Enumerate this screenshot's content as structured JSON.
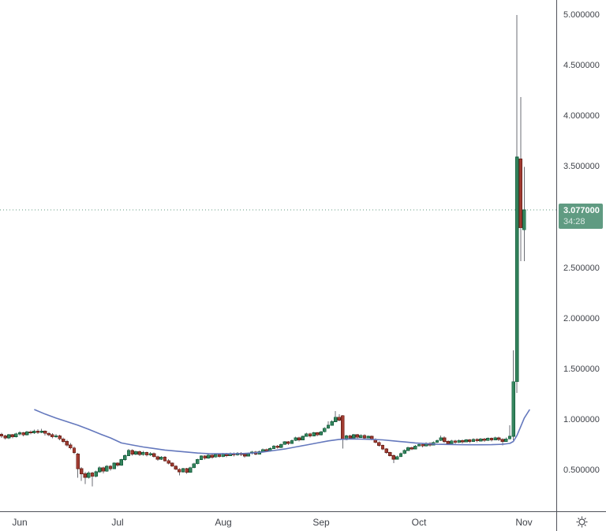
{
  "chart_data": {
    "type": "candlestick",
    "x_start": 2,
    "x_step": 4.6,
    "ylim": [
      0.1,
      5.15
    ],
    "grid": false,
    "legend": "none",
    "colors": {
      "background": "#ffffff",
      "up": "#35855e",
      "up_border": "#17603f",
      "down": "#a03b31",
      "down_border": "#6f241c",
      "wick": "#6b6e74",
      "axis_line": "#50525a",
      "axis_text": "#40434a"
    },
    "candles": [
      [
        0.86,
        0.875,
        0.825,
        0.845
      ],
      [
        0.845,
        0.855,
        0.81,
        0.825
      ],
      [
        0.825,
        0.865,
        0.815,
        0.855
      ],
      [
        0.855,
        0.865,
        0.82,
        0.835
      ],
      [
        0.835,
        0.875,
        0.83,
        0.865
      ],
      [
        0.865,
        0.89,
        0.85,
        0.875
      ],
      [
        0.875,
        0.885,
        0.84,
        0.855
      ],
      [
        0.855,
        0.895,
        0.85,
        0.885
      ],
      [
        0.885,
        0.9,
        0.86,
        0.875
      ],
      [
        0.875,
        0.905,
        0.865,
        0.89
      ],
      [
        0.89,
        0.91,
        0.865,
        0.88
      ],
      [
        0.88,
        0.915,
        0.87,
        0.89
      ],
      [
        0.89,
        0.9,
        0.85,
        0.87
      ],
      [
        0.87,
        0.885,
        0.84,
        0.855
      ],
      [
        0.855,
        0.87,
        0.82,
        0.835
      ],
      [
        0.835,
        0.865,
        0.825,
        0.845
      ],
      [
        0.845,
        0.855,
        0.8,
        0.815
      ],
      [
        0.815,
        0.83,
        0.775,
        0.79
      ],
      [
        0.79,
        0.805,
        0.74,
        0.755
      ],
      [
        0.755,
        0.775,
        0.71,
        0.725
      ],
      [
        0.725,
        0.74,
        0.665,
        0.68
      ],
      [
        0.665,
        0.675,
        0.43,
        0.52
      ],
      [
        0.52,
        0.535,
        0.4,
        0.47
      ],
      [
        0.47,
        0.49,
        0.37,
        0.435
      ],
      [
        0.435,
        0.495,
        0.425,
        0.48
      ],
      [
        0.48,
        0.49,
        0.345,
        0.445
      ],
      [
        0.445,
        0.5,
        0.435,
        0.49
      ],
      [
        0.49,
        0.545,
        0.48,
        0.53
      ],
      [
        0.53,
        0.54,
        0.475,
        0.495
      ],
      [
        0.495,
        0.555,
        0.49,
        0.545
      ],
      [
        0.545,
        0.555,
        0.5,
        0.52
      ],
      [
        0.52,
        0.585,
        0.515,
        0.575
      ],
      [
        0.575,
        0.585,
        0.54,
        0.555
      ],
      [
        0.555,
        0.62,
        0.55,
        0.61
      ],
      [
        0.61,
        0.66,
        0.6,
        0.65
      ],
      [
        0.65,
        0.715,
        0.645,
        0.7
      ],
      [
        0.7,
        0.71,
        0.65,
        0.665
      ],
      [
        0.665,
        0.7,
        0.655,
        0.69
      ],
      [
        0.69,
        0.7,
        0.645,
        0.66
      ],
      [
        0.66,
        0.695,
        0.65,
        0.68
      ],
      [
        0.68,
        0.69,
        0.64,
        0.655
      ],
      [
        0.655,
        0.685,
        0.645,
        0.67
      ],
      [
        0.67,
        0.68,
        0.63,
        0.64
      ],
      [
        0.64,
        0.65,
        0.6,
        0.615
      ],
      [
        0.615,
        0.645,
        0.605,
        0.635
      ],
      [
        0.635,
        0.645,
        0.59,
        0.6
      ],
      [
        0.6,
        0.615,
        0.565,
        0.575
      ],
      [
        0.575,
        0.585,
        0.535,
        0.545
      ],
      [
        0.545,
        0.555,
        0.505,
        0.515
      ],
      [
        0.515,
        0.525,
        0.455,
        0.49
      ],
      [
        0.49,
        0.53,
        0.48,
        0.52
      ],
      [
        0.52,
        0.53,
        0.47,
        0.485
      ],
      [
        0.485,
        0.54,
        0.48,
        0.53
      ],
      [
        0.53,
        0.58,
        0.525,
        0.57
      ],
      [
        0.57,
        0.62,
        0.565,
        0.61
      ],
      [
        0.61,
        0.655,
        0.605,
        0.645
      ],
      [
        0.645,
        0.655,
        0.61,
        0.625
      ],
      [
        0.625,
        0.665,
        0.62,
        0.655
      ],
      [
        0.655,
        0.665,
        0.62,
        0.635
      ],
      [
        0.635,
        0.67,
        0.63,
        0.66
      ],
      [
        0.66,
        0.67,
        0.63,
        0.64
      ],
      [
        0.64,
        0.675,
        0.635,
        0.665
      ],
      [
        0.665,
        0.675,
        0.635,
        0.65
      ],
      [
        0.65,
        0.68,
        0.645,
        0.67
      ],
      [
        0.67,
        0.68,
        0.64,
        0.655
      ],
      [
        0.655,
        0.685,
        0.65,
        0.675
      ],
      [
        0.675,
        0.685,
        0.645,
        0.66
      ],
      [
        0.66,
        0.67,
        0.63,
        0.645
      ],
      [
        0.645,
        0.68,
        0.64,
        0.67
      ],
      [
        0.67,
        0.695,
        0.66,
        0.685
      ],
      [
        0.685,
        0.695,
        0.655,
        0.665
      ],
      [
        0.665,
        0.7,
        0.66,
        0.69
      ],
      [
        0.69,
        0.72,
        0.685,
        0.71
      ],
      [
        0.71,
        0.72,
        0.685,
        0.695
      ],
      [
        0.695,
        0.73,
        0.69,
        0.72
      ],
      [
        0.72,
        0.755,
        0.715,
        0.745
      ],
      [
        0.745,
        0.755,
        0.72,
        0.73
      ],
      [
        0.73,
        0.77,
        0.725,
        0.76
      ],
      [
        0.76,
        0.795,
        0.755,
        0.785
      ],
      [
        0.785,
        0.795,
        0.755,
        0.77
      ],
      [
        0.77,
        0.81,
        0.765,
        0.8
      ],
      [
        0.8,
        0.835,
        0.795,
        0.825
      ],
      [
        0.825,
        0.835,
        0.79,
        0.805
      ],
      [
        0.805,
        0.85,
        0.8,
        0.84
      ],
      [
        0.84,
        0.875,
        0.835,
        0.865
      ],
      [
        0.865,
        0.875,
        0.83,
        0.845
      ],
      [
        0.845,
        0.885,
        0.84,
        0.875
      ],
      [
        0.875,
        0.885,
        0.84,
        0.855
      ],
      [
        0.855,
        0.895,
        0.85,
        0.885
      ],
      [
        0.885,
        0.93,
        0.88,
        0.92
      ],
      [
        0.92,
        0.99,
        0.915,
        0.95
      ],
      [
        0.95,
        1.0,
        0.945,
        0.985
      ],
      [
        0.985,
        1.09,
        0.98,
        1.03
      ],
      [
        1.03,
        1.06,
        0.99,
        1.0
      ],
      [
        1.045,
        1.05,
        0.72,
        0.81
      ],
      [
        0.81,
        0.855,
        0.8,
        0.845
      ],
      [
        0.845,
        0.855,
        0.81,
        0.825
      ],
      [
        0.825,
        0.865,
        0.82,
        0.855
      ],
      [
        0.855,
        0.865,
        0.82,
        0.83
      ],
      [
        0.83,
        0.86,
        0.825,
        0.85
      ],
      [
        0.85,
        0.86,
        0.815,
        0.825
      ],
      [
        0.825,
        0.85,
        0.82,
        0.84
      ],
      [
        0.84,
        0.85,
        0.8,
        0.81
      ],
      [
        0.81,
        0.82,
        0.77,
        0.78
      ],
      [
        0.78,
        0.79,
        0.74,
        0.75
      ],
      [
        0.75,
        0.76,
        0.705,
        0.715
      ],
      [
        0.715,
        0.725,
        0.67,
        0.68
      ],
      [
        0.68,
        0.69,
        0.64,
        0.65
      ],
      [
        0.65,
        0.66,
        0.575,
        0.615
      ],
      [
        0.615,
        0.65,
        0.61,
        0.64
      ],
      [
        0.64,
        0.68,
        0.635,
        0.67
      ],
      [
        0.67,
        0.71,
        0.665,
        0.7
      ],
      [
        0.7,
        0.74,
        0.695,
        0.73
      ],
      [
        0.73,
        0.74,
        0.705,
        0.715
      ],
      [
        0.715,
        0.755,
        0.71,
        0.745
      ],
      [
        0.745,
        0.775,
        0.74,
        0.76
      ],
      [
        0.76,
        0.77,
        0.73,
        0.745
      ],
      [
        0.745,
        0.78,
        0.74,
        0.77
      ],
      [
        0.77,
        0.78,
        0.74,
        0.755
      ],
      [
        0.755,
        0.79,
        0.75,
        0.78
      ],
      [
        0.78,
        0.81,
        0.775,
        0.8
      ],
      [
        0.8,
        0.85,
        0.795,
        0.825
      ],
      [
        0.825,
        0.84,
        0.775,
        0.79
      ],
      [
        0.79,
        0.8,
        0.755,
        0.77
      ],
      [
        0.77,
        0.805,
        0.765,
        0.795
      ],
      [
        0.795,
        0.805,
        0.765,
        0.78
      ],
      [
        0.78,
        0.81,
        0.775,
        0.8
      ],
      [
        0.8,
        0.81,
        0.77,
        0.785
      ],
      [
        0.785,
        0.815,
        0.78,
        0.805
      ],
      [
        0.805,
        0.815,
        0.775,
        0.79
      ],
      [
        0.79,
        0.82,
        0.785,
        0.81
      ],
      [
        0.81,
        0.82,
        0.78,
        0.795
      ],
      [
        0.795,
        0.825,
        0.79,
        0.815
      ],
      [
        0.815,
        0.825,
        0.785,
        0.8
      ],
      [
        0.8,
        0.83,
        0.795,
        0.82
      ],
      [
        0.82,
        0.83,
        0.79,
        0.805
      ],
      [
        0.805,
        0.835,
        0.8,
        0.825
      ],
      [
        0.825,
        0.835,
        0.795,
        0.81
      ],
      [
        0.81,
        0.82,
        0.75,
        0.79
      ],
      [
        0.79,
        0.83,
        0.785,
        0.815
      ],
      [
        0.815,
        0.95,
        0.81,
        0.84
      ],
      [
        0.84,
        1.69,
        0.8,
        1.38
      ],
      [
        1.38,
        5.0,
        1.27,
        3.6
      ],
      [
        3.58,
        4.19,
        2.57,
        2.9
      ],
      [
        2.88,
        3.5,
        2.57,
        3.077
      ]
    ],
    "ma_line": {
      "name": "moving-average",
      "color": "#6478bd",
      "points": [
        [
          9,
          1.105
        ],
        [
          12,
          1.06
        ],
        [
          15,
          1.02
        ],
        [
          18,
          0.985
        ],
        [
          21,
          0.95
        ],
        [
          24,
          0.91
        ],
        [
          27,
          0.865
        ],
        [
          30,
          0.825
        ],
        [
          33,
          0.775
        ],
        [
          36,
          0.755
        ],
        [
          39,
          0.735
        ],
        [
          42,
          0.72
        ],
        [
          45,
          0.705
        ],
        [
          48,
          0.695
        ],
        [
          51,
          0.685
        ],
        [
          54,
          0.675
        ],
        [
          57,
          0.67
        ],
        [
          60,
          0.668
        ],
        [
          63,
          0.668
        ],
        [
          66,
          0.67
        ],
        [
          69,
          0.675
        ],
        [
          72,
          0.685
        ],
        [
          75,
          0.7
        ],
        [
          78,
          0.715
        ],
        [
          81,
          0.735
        ],
        [
          84,
          0.755
        ],
        [
          87,
          0.775
        ],
        [
          90,
          0.795
        ],
        [
          93,
          0.81
        ],
        [
          96,
          0.815
        ],
        [
          99,
          0.813
        ],
        [
          102,
          0.81
        ],
        [
          105,
          0.805
        ],
        [
          108,
          0.795
        ],
        [
          111,
          0.785
        ],
        [
          114,
          0.775
        ],
        [
          117,
          0.768
        ],
        [
          120,
          0.762
        ],
        [
          123,
          0.76
        ],
        [
          126,
          0.758
        ],
        [
          129,
          0.757
        ],
        [
          132,
          0.757
        ],
        [
          135,
          0.758
        ],
        [
          138,
          0.762
        ],
        [
          140,
          0.77
        ],
        [
          141,
          0.79
        ],
        [
          142,
          0.85
        ],
        [
          143,
          0.935
        ],
        [
          144,
          1.02
        ],
        [
          145.5,
          1.105
        ]
      ]
    },
    "price_line": {
      "value": 3.077,
      "label": "3.077000",
      "countdown": "34:28",
      "color": "#609b82",
      "text_color": "#ffffff"
    },
    "y_axis": {
      "ticks": [
        {
          "value": 5.0,
          "label": "5.000000"
        },
        {
          "value": 4.5,
          "label": "4.500000"
        },
        {
          "value": 4.0,
          "label": "4.000000"
        },
        {
          "value": 3.5,
          "label": "3.500000"
        },
        {
          "value": 2.5,
          "label": "2.500000"
        },
        {
          "value": 2.0,
          "label": "2.000000"
        },
        {
          "value": 1.5,
          "label": "1.500000"
        },
        {
          "value": 1.0,
          "label": "1.000000"
        },
        {
          "value": 0.5,
          "label": "0.500000"
        }
      ]
    },
    "x_axis": {
      "ticks": [
        {
          "label": "Jun",
          "index": 5
        },
        {
          "label": "Jul",
          "index": 32
        },
        {
          "label": "Aug",
          "index": 61
        },
        {
          "label": "Sep",
          "index": 88
        },
        {
          "label": "Oct",
          "index": 115
        },
        {
          "label": "Nov",
          "index": 144
        }
      ]
    }
  },
  "axis_corner": {
    "settings_icon": "gear-icon"
  }
}
